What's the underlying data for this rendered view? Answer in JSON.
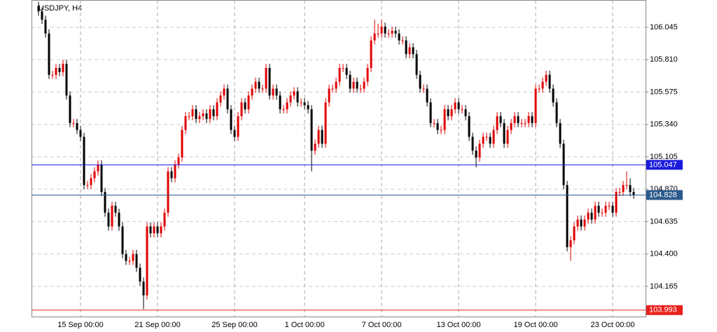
{
  "chart_data": {
    "type": "candlestick",
    "title": "USDJPY, H4",
    "up_color": "#e00000",
    "down_color": "#000000",
    "ylim": [
      103.946,
      106.243
    ],
    "yticks": [
      {
        "value": 106.045,
        "label": "106.045"
      },
      {
        "value": 105.81,
        "label": "105.810"
      },
      {
        "value": 105.575,
        "label": "105.575"
      },
      {
        "value": 105.34,
        "label": "105.340"
      },
      {
        "value": 105.105,
        "label": "105.105"
      },
      {
        "value": 104.87,
        "label": "104.870"
      },
      {
        "value": 104.635,
        "label": "104.635"
      },
      {
        "value": 104.4,
        "label": "104.400"
      },
      {
        "value": 104.165,
        "label": "104.165"
      }
    ],
    "grid": true,
    "levels": [
      {
        "value": 105.047,
        "color": "#1a1adf"
      },
      {
        "value": 104.828,
        "color": "#2c5a8c"
      },
      {
        "value": 103.993,
        "color": "#e8201c"
      }
    ],
    "categories": [
      null,
      null,
      null,
      null,
      null,
      null,
      null,
      null,
      null,
      null,
      null,
      null,
      "15 Sep 00:00",
      null,
      null,
      null,
      null,
      null,
      null,
      null,
      null,
      null,
      null,
      null,
      null,
      null,
      null,
      null,
      null,
      null,
      null,
      null,
      null,
      null,
      "21 Sep 00:00",
      null,
      null,
      null,
      null,
      null,
      null,
      null,
      null,
      null,
      null,
      null,
      null,
      null,
      null,
      null,
      null,
      null,
      null,
      null,
      null,
      null,
      "25 Sep 00:00",
      null,
      null,
      null,
      null,
      null,
      null,
      null,
      null,
      null,
      null,
      null,
      null,
      null,
      null,
      null,
      null,
      null,
      null,
      null,
      "1 Oct 00:00",
      null,
      null,
      null,
      null,
      null,
      null,
      null,
      null,
      null,
      null,
      null,
      null,
      null,
      null,
      null,
      null,
      null,
      null,
      null,
      null,
      null,
      "7 Oct 00:00",
      null,
      null,
      null,
      null,
      null,
      null,
      null,
      null,
      null,
      null,
      null,
      null,
      null,
      null,
      null,
      null,
      null,
      null,
      null,
      null,
      null,
      "13 Oct 00:00",
      null,
      null,
      null,
      null,
      null,
      null,
      null,
      null,
      null,
      null,
      null,
      null,
      null,
      null,
      null,
      null,
      null,
      null,
      null,
      null,
      null,
      "19 Oct 00:00",
      null,
      null,
      null,
      null,
      null,
      null,
      null,
      null,
      null,
      null,
      null,
      null,
      null,
      null,
      null,
      null,
      null,
      null,
      null,
      null,
      null,
      "23 Oct 00:00",
      null,
      null,
      null,
      null
    ],
    "candles": [
      [
        106.2,
        106.23,
        106.13,
        106.16
      ],
      [
        106.16,
        106.19,
        106.07,
        106.1
      ],
      [
        106.1,
        106.13,
        105.97,
        106.0
      ],
      [
        106.0,
        106.03,
        105.67,
        105.7
      ],
      [
        105.7,
        105.73,
        105.67,
        105.7
      ],
      [
        105.7,
        105.78,
        105.67,
        105.75
      ],
      [
        105.75,
        105.78,
        105.69,
        105.72
      ],
      [
        105.72,
        105.81,
        105.69,
        105.78
      ],
      [
        105.78,
        105.81,
        105.52,
        105.55
      ],
      [
        105.55,
        105.58,
        105.32,
        105.35
      ],
      [
        105.35,
        105.38,
        105.32,
        105.35
      ],
      [
        105.35,
        105.38,
        105.27,
        105.3
      ],
      [
        105.3,
        105.33,
        105.22,
        105.25
      ],
      [
        105.25,
        105.28,
        104.87,
        104.9
      ],
      [
        104.9,
        104.93,
        104.87,
        104.9
      ],
      [
        104.9,
        104.98,
        104.87,
        104.95
      ],
      [
        104.95,
        105.03,
        104.92,
        105.0
      ],
      [
        105.0,
        105.08,
        104.97,
        105.05
      ],
      [
        105.05,
        105.08,
        104.82,
        104.85
      ],
      [
        104.85,
        104.88,
        104.67,
        104.7
      ],
      [
        104.7,
        104.73,
        104.57,
        104.6
      ],
      [
        104.6,
        104.78,
        104.57,
        104.75
      ],
      [
        104.75,
        104.78,
        104.67,
        104.7
      ],
      [
        104.7,
        104.73,
        104.57,
        104.6
      ],
      [
        104.6,
        104.63,
        104.37,
        104.4
      ],
      [
        104.4,
        104.43,
        104.32,
        104.35
      ],
      [
        104.35,
        104.38,
        104.32,
        104.35
      ],
      [
        104.35,
        104.43,
        104.32,
        104.4
      ],
      [
        104.4,
        104.43,
        104.27,
        104.3
      ],
      [
        104.3,
        104.33,
        104.17,
        104.2
      ],
      [
        104.2,
        104.23,
        104.0,
        104.1
      ],
      [
        104.1,
        104.63,
        104.07,
        104.6
      ],
      [
        104.6,
        104.63,
        104.52,
        104.55
      ],
      [
        104.55,
        104.63,
        104.52,
        104.6
      ],
      [
        104.6,
        104.63,
        104.52,
        104.55
      ],
      [
        104.55,
        104.63,
        104.52,
        104.6
      ],
      [
        104.6,
        104.73,
        104.57,
        104.7
      ],
      [
        104.7,
        105.03,
        104.67,
        105.0
      ],
      [
        105.0,
        105.03,
        104.92,
        104.95
      ],
      [
        104.95,
        105.08,
        104.92,
        105.05
      ],
      [
        105.05,
        105.13,
        105.02,
        105.1
      ],
      [
        105.1,
        105.33,
        105.07,
        105.3
      ],
      [
        105.3,
        105.43,
        105.27,
        105.4
      ],
      [
        105.4,
        105.43,
        105.37,
        105.4
      ],
      [
        105.4,
        105.48,
        105.37,
        105.45
      ],
      [
        105.45,
        105.48,
        105.35,
        105.38
      ],
      [
        105.38,
        105.43,
        105.35,
        105.4
      ],
      [
        105.4,
        105.45,
        105.37,
        105.42
      ],
      [
        105.42,
        105.45,
        105.35,
        105.38
      ],
      [
        105.38,
        105.48,
        105.35,
        105.45
      ],
      [
        105.45,
        105.48,
        105.37,
        105.4
      ],
      [
        105.4,
        105.53,
        105.37,
        105.5
      ],
      [
        105.5,
        105.58,
        105.47,
        105.55
      ],
      [
        105.55,
        105.63,
        105.52,
        105.6
      ],
      [
        105.6,
        105.63,
        105.42,
        105.45
      ],
      [
        105.45,
        105.48,
        105.27,
        105.3
      ],
      [
        105.3,
        105.33,
        105.22,
        105.25
      ],
      [
        105.25,
        105.43,
        105.22,
        105.4
      ],
      [
        105.4,
        105.53,
        105.37,
        105.5
      ],
      [
        105.5,
        105.53,
        105.42,
        105.45
      ],
      [
        105.45,
        105.58,
        105.42,
        105.55
      ],
      [
        105.55,
        105.63,
        105.52,
        105.6
      ],
      [
        105.6,
        105.68,
        105.57,
        105.65
      ],
      [
        105.65,
        105.68,
        105.57,
        105.6
      ],
      [
        105.6,
        105.63,
        105.57,
        105.6
      ],
      [
        105.6,
        105.78,
        105.57,
        105.75
      ],
      [
        105.75,
        105.78,
        105.52,
        105.55
      ],
      [
        105.55,
        105.63,
        105.52,
        105.6
      ],
      [
        105.6,
        105.63,
        105.52,
        105.55
      ],
      [
        105.55,
        105.58,
        105.42,
        105.45
      ],
      [
        105.45,
        105.48,
        105.42,
        105.45
      ],
      [
        105.45,
        105.53,
        105.42,
        105.5
      ],
      [
        105.5,
        105.58,
        105.47,
        105.55
      ],
      [
        105.55,
        105.61,
        105.52,
        105.58
      ],
      [
        105.58,
        105.61,
        105.47,
        105.5
      ],
      [
        105.5,
        105.53,
        105.47,
        105.5
      ],
      [
        105.5,
        105.53,
        105.45,
        105.48
      ],
      [
        105.48,
        105.51,
        105.42,
        105.45
      ],
      [
        105.45,
        105.48,
        105.0,
        105.15
      ],
      [
        105.15,
        105.23,
        105.12,
        105.2
      ],
      [
        105.2,
        105.33,
        105.17,
        105.3
      ],
      [
        105.3,
        105.33,
        105.17,
        105.2
      ],
      [
        105.2,
        105.53,
        105.17,
        105.5
      ],
      [
        105.5,
        105.63,
        105.47,
        105.6
      ],
      [
        105.6,
        105.63,
        105.57,
        105.6
      ],
      [
        105.6,
        105.68,
        105.57,
        105.65
      ],
      [
        105.65,
        105.78,
        105.62,
        105.75
      ],
      [
        105.75,
        105.78,
        105.72,
        105.75
      ],
      [
        105.75,
        105.78,
        105.67,
        105.7
      ],
      [
        105.7,
        105.73,
        105.57,
        105.6
      ],
      [
        105.6,
        105.68,
        105.57,
        105.65
      ],
      [
        105.65,
        105.68,
        105.57,
        105.6
      ],
      [
        105.6,
        105.63,
        105.57,
        105.6
      ],
      [
        105.6,
        105.68,
        105.57,
        105.65
      ],
      [
        105.65,
        105.78,
        105.62,
        105.75
      ],
      [
        105.75,
        105.98,
        105.72,
        105.95
      ],
      [
        105.95,
        106.1,
        105.92,
        106.0
      ],
      [
        106.0,
        106.07,
        105.97,
        106.0
      ],
      [
        106.0,
        106.1,
        105.97,
        106.05
      ],
      [
        106.05,
        106.08,
        105.97,
        106.0
      ],
      [
        106.0,
        106.03,
        105.97,
        106.0
      ],
      [
        106.0,
        106.05,
        105.97,
        106.02
      ],
      [
        106.02,
        106.05,
        105.97,
        106.0
      ],
      [
        106.0,
        106.03,
        105.92,
        105.95
      ],
      [
        105.95,
        105.98,
        105.92,
        105.95
      ],
      [
        105.95,
        105.98,
        105.82,
        105.85
      ],
      [
        105.85,
        105.93,
        105.82,
        105.9
      ],
      [
        105.9,
        105.93,
        105.82,
        105.85
      ],
      [
        105.85,
        105.88,
        105.67,
        105.7
      ],
      [
        105.7,
        105.73,
        105.57,
        105.6
      ],
      [
        105.6,
        105.63,
        105.57,
        105.6
      ],
      [
        105.6,
        105.63,
        105.47,
        105.5
      ],
      [
        105.5,
        105.53,
        105.32,
        105.35
      ],
      [
        105.35,
        105.38,
        105.32,
        105.35
      ],
      [
        105.35,
        105.38,
        105.27,
        105.3
      ],
      [
        105.3,
        105.33,
        105.27,
        105.3
      ],
      [
        105.3,
        105.48,
        105.27,
        105.45
      ],
      [
        105.45,
        105.48,
        105.37,
        105.4
      ],
      [
        105.4,
        105.48,
        105.37,
        105.45
      ],
      [
        105.45,
        105.53,
        105.42,
        105.5
      ],
      [
        105.5,
        105.53,
        105.42,
        105.45
      ],
      [
        105.45,
        105.48,
        105.42,
        105.45
      ],
      [
        105.45,
        105.48,
        105.37,
        105.4
      ],
      [
        105.4,
        105.43,
        105.22,
        105.25
      ],
      [
        105.25,
        105.28,
        105.12,
        105.15
      ],
      [
        105.15,
        105.18,
        105.03,
        105.1
      ],
      [
        105.1,
        105.23,
        105.07,
        105.2
      ],
      [
        105.2,
        105.28,
        105.17,
        105.25
      ],
      [
        105.25,
        105.28,
        105.22,
        105.25
      ],
      [
        105.25,
        105.28,
        105.17,
        105.2
      ],
      [
        105.2,
        105.33,
        105.17,
        105.3
      ],
      [
        105.3,
        105.43,
        105.27,
        105.4
      ],
      [
        105.4,
        105.43,
        105.32,
        105.35
      ],
      [
        105.35,
        105.38,
        105.17,
        105.2
      ],
      [
        105.2,
        105.33,
        105.17,
        105.3
      ],
      [
        105.3,
        105.38,
        105.27,
        105.35
      ],
      [
        105.35,
        105.43,
        105.32,
        105.4
      ],
      [
        105.4,
        105.43,
        105.32,
        105.35
      ],
      [
        105.35,
        105.38,
        105.32,
        105.35
      ],
      [
        105.35,
        105.38,
        105.32,
        105.35
      ],
      [
        105.35,
        105.43,
        105.32,
        105.4
      ],
      [
        105.4,
        105.43,
        105.32,
        105.35
      ],
      [
        105.35,
        105.63,
        105.32,
        105.6
      ],
      [
        105.6,
        105.63,
        105.57,
        105.6
      ],
      [
        105.6,
        105.68,
        105.57,
        105.65
      ],
      [
        105.65,
        105.73,
        105.62,
        105.7
      ],
      [
        105.7,
        105.73,
        105.57,
        105.6
      ],
      [
        105.6,
        105.63,
        105.47,
        105.5
      ],
      [
        105.5,
        105.53,
        105.32,
        105.35
      ],
      [
        105.35,
        105.38,
        105.17,
        105.2
      ],
      [
        105.2,
        105.23,
        104.87,
        104.9
      ],
      [
        104.9,
        104.93,
        104.42,
        104.45
      ],
      [
        104.45,
        104.53,
        104.35,
        104.5
      ],
      [
        104.5,
        104.63,
        104.47,
        104.6
      ],
      [
        104.6,
        104.68,
        104.57,
        104.65
      ],
      [
        104.65,
        104.68,
        104.57,
        104.6
      ],
      [
        104.6,
        104.68,
        104.57,
        104.65
      ],
      [
        104.65,
        104.73,
        104.62,
        104.7
      ],
      [
        104.7,
        104.73,
        104.62,
        104.65
      ],
      [
        104.65,
        104.78,
        104.62,
        104.75
      ],
      [
        104.75,
        104.78,
        104.67,
        104.7
      ],
      [
        104.7,
        104.73,
        104.67,
        104.7
      ],
      [
        104.7,
        104.78,
        104.67,
        104.75
      ],
      [
        104.75,
        104.78,
        104.72,
        104.75
      ],
      [
        104.75,
        104.78,
        104.67,
        104.7
      ],
      [
        104.7,
        104.88,
        104.67,
        104.85
      ],
      [
        104.85,
        104.88,
        104.82,
        104.85
      ],
      [
        104.85,
        104.93,
        104.82,
        104.9
      ],
      [
        104.9,
        105.0,
        104.87,
        104.9
      ],
      [
        104.9,
        104.95,
        104.82,
        104.85
      ],
      [
        104.85,
        104.88,
        104.8,
        104.828
      ]
    ]
  }
}
